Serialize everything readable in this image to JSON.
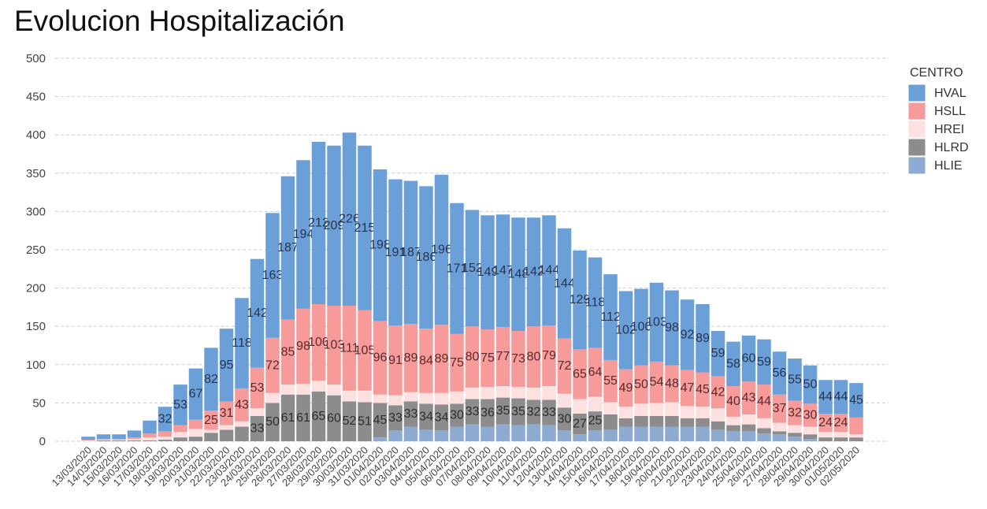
{
  "chart_data": {
    "type": "bar",
    "stacked": true,
    "title": "Evolucion Hospitalización",
    "xlabel": "",
    "ylabel": "",
    "ylim": [
      0,
      500
    ],
    "yticks": [
      0,
      50,
      100,
      150,
      200,
      250,
      300,
      350,
      400,
      450,
      500
    ],
    "grid": true,
    "legend": {
      "title": "CENTRO",
      "placement": "right"
    },
    "categories": [
      "13/03/2020",
      "14/03/2020",
      "15/03/2020",
      "16/03/2020",
      "17/03/2020",
      "18/03/2020",
      "19/03/2020",
      "20/03/2020",
      "21/03/2020",
      "22/03/2020",
      "23/03/2020",
      "24/03/2020",
      "25/03/2020",
      "26/03/2020",
      "27/03/2020",
      "28/03/2020",
      "29/03/2020",
      "30/03/2020",
      "31/03/2020",
      "01/04/2020",
      "02/04/2020",
      "03/04/2020",
      "04/04/2020",
      "05/04/2020",
      "06/04/2020",
      "07/04/2020",
      "08/04/2020",
      "09/04/2020",
      "10/04/2020",
      "11/04/2020",
      "12/04/2020",
      "13/04/2020",
      "14/04/2020",
      "15/04/2020",
      "16/04/2020",
      "17/04/2020",
      "18/04/2020",
      "19/04/2020",
      "20/04/2020",
      "21/04/2020",
      "22/04/2020",
      "23/04/2020",
      "24/04/2020",
      "25/04/2020",
      "26/04/2020",
      "27/04/2020",
      "28/04/2020",
      "29/04/2020",
      "30/04/2020",
      "01/05/2020",
      "02/05/2020"
    ],
    "series": [
      {
        "name": "HVAL",
        "color": "#6a9fd8",
        "label_color": "#26354f",
        "values": [
          4,
          6,
          6,
          9,
          17,
          32,
          53,
          67,
          82,
          95,
          118,
          142,
          163,
          187,
          194,
          212,
          209,
          226,
          215,
          198,
          191,
          187,
          186,
          196,
          171,
          152,
          149,
          147,
          148,
          142,
          144,
          144,
          129,
          118,
          112,
          102,
          100,
          103,
          98,
          92,
          89,
          59,
          58,
          60,
          59,
          56,
          55,
          50,
          44,
          44,
          45
        ]
      },
      {
        "name": "HSLL",
        "color": "#f79a9a",
        "label_color": "#5a2a2e",
        "values": [
          1,
          1,
          1,
          2,
          5,
          7,
          9,
          12,
          25,
          31,
          43,
          53,
          72,
          85,
          98,
          100,
          103,
          111,
          105,
          96,
          91,
          89,
          84,
          89,
          75,
          80,
          75,
          77,
          73,
          80,
          79,
          72,
          65,
          64,
          55,
          49,
          50,
          54,
          48,
          47,
          45,
          42,
          40,
          43,
          44,
          37,
          32,
          30,
          24,
          24,
          22
        ]
      },
      {
        "name": "HREI",
        "color": "#fde0e0",
        "label_color": "#444444",
        "values": [
          1,
          1,
          1,
          2,
          4,
          4,
          7,
          10,
          4,
          6,
          7,
          10,
          13,
          13,
          14,
          14,
          14,
          14,
          15,
          11,
          13,
          12,
          14,
          15,
          16,
          15,
          16,
          15,
          15,
          16,
          18,
          18,
          19,
          19,
          16,
          15,
          16,
          17,
          18,
          16,
          15,
          17,
          11,
          13,
          13,
          11,
          10,
          10,
          7,
          7,
          4
        ]
      },
      {
        "name": "HLRD",
        "color": "#8c8c8c",
        "label_color": "#2e2e2e",
        "values": [
          0,
          1,
          1,
          1,
          1,
          2,
          5,
          6,
          11,
          15,
          19,
          33,
          50,
          61,
          61,
          65,
          60,
          52,
          51,
          45,
          33,
          33,
          34,
          34,
          30,
          33,
          36,
          35,
          35,
          32,
          33,
          30,
          27,
          25,
          20,
          11,
          14,
          14,
          14,
          11,
          11,
          11,
          8,
          9,
          7,
          4,
          5,
          6,
          5,
          5,
          5
        ]
      },
      {
        "name": "HLIE",
        "color": "#8dabd0",
        "label_color": "#333333",
        "values": [
          0,
          0,
          0,
          0,
          0,
          0,
          0,
          0,
          0,
          0,
          0,
          0,
          0,
          0,
          0,
          0,
          0,
          0,
          0,
          5,
          14,
          19,
          15,
          14,
          19,
          22,
          19,
          22,
          21,
          22,
          21,
          14,
          9,
          14,
          15,
          19,
          19,
          19,
          19,
          19,
          19,
          15,
          13,
          13,
          10,
          9,
          6,
          3,
          0,
          0,
          0
        ]
      }
    ],
    "data_labels_min": 24,
    "labeled_series": [
      "HVAL",
      "HSLL",
      "HLRD"
    ]
  }
}
